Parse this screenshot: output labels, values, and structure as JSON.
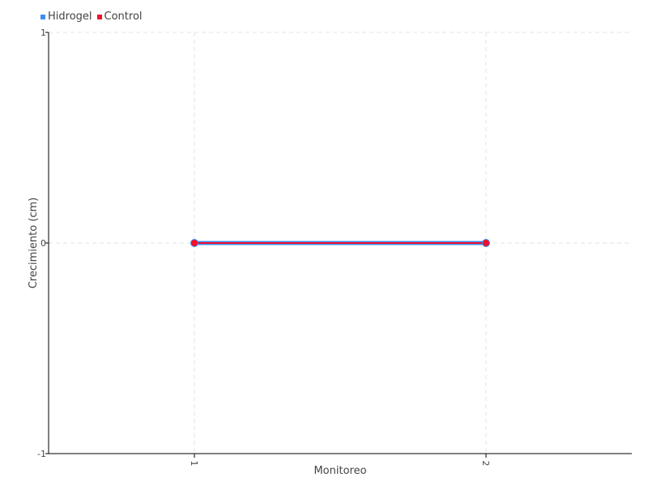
{
  "chart_data": {
    "type": "line",
    "categories": [
      "1",
      "2"
    ],
    "xlabel": "Monitoreo",
    "ylabel": "Crecimiento (cm)",
    "ylim": [
      -1,
      1
    ],
    "yticks": [
      "1",
      "0",
      "-1"
    ],
    "grid": true,
    "legend_position": "top-left",
    "series": [
      {
        "name": "Hidrogel",
        "values": [
          0,
          0
        ],
        "color": "#3d8ef0"
      },
      {
        "name": "Control",
        "values": [
          0,
          0
        ],
        "color": "#f0112b"
      }
    ]
  }
}
